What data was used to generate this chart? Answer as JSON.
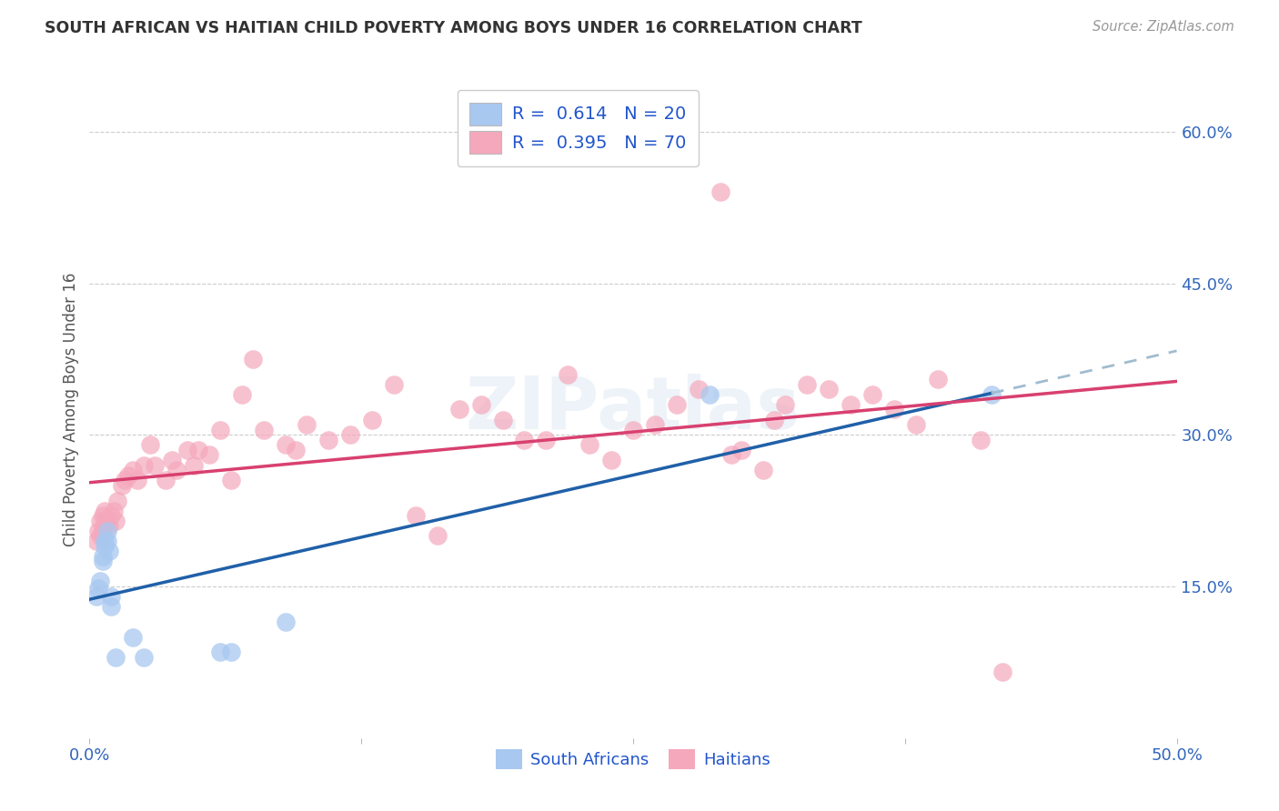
{
  "title": "SOUTH AFRICAN VS HAITIAN CHILD POVERTY AMONG BOYS UNDER 16 CORRELATION CHART",
  "source": "Source: ZipAtlas.com",
  "ylabel": "Child Poverty Among Boys Under 16",
  "xlim": [
    0.0,
    0.5
  ],
  "ylim": [
    0.0,
    0.65
  ],
  "xtick_vals": [
    0.0,
    0.125,
    0.25,
    0.375,
    0.5
  ],
  "xtick_labels": [
    "0.0%",
    "",
    "",
    "",
    "50.0%"
  ],
  "ytick_labels_right": [
    "60.0%",
    "45.0%",
    "30.0%",
    "15.0%"
  ],
  "ytick_vals_right": [
    0.6,
    0.45,
    0.3,
    0.15
  ],
  "blue_R": 0.614,
  "blue_N": 20,
  "pink_R": 0.395,
  "pink_N": 70,
  "blue_color": "#A8C8F0",
  "pink_color": "#F5A8BC",
  "blue_line_color": "#2060A8",
  "pink_line_color": "#D84070",
  "blue_dash_color": "#A0BCD0",
  "background_color": "#FFFFFF",
  "grid_color": "#CCCCCC",
  "title_color": "#333333",
  "axis_label_color": "#555555",
  "right_tick_color": "#3366BB",
  "bottom_tick_color": "#3366BB",
  "legend_text_color": "#2255CC",
  "watermark": "ZIPatlas",
  "blue_points_x": [
    0.003,
    0.004,
    0.005,
    0.006,
    0.006,
    0.007,
    0.007,
    0.008,
    0.008,
    0.009,
    0.01,
    0.01,
    0.012,
    0.02,
    0.025,
    0.06,
    0.065,
    0.09,
    0.285,
    0.415
  ],
  "blue_points_y": [
    0.14,
    0.148,
    0.155,
    0.175,
    0.18,
    0.19,
    0.195,
    0.195,
    0.205,
    0.185,
    0.13,
    0.14,
    0.08,
    0.1,
    0.08,
    0.085,
    0.085,
    0.115,
    0.34,
    0.34
  ],
  "pink_points_x": [
    0.003,
    0.004,
    0.005,
    0.005,
    0.006,
    0.006,
    0.007,
    0.007,
    0.008,
    0.009,
    0.01,
    0.011,
    0.012,
    0.013,
    0.015,
    0.016,
    0.018,
    0.02,
    0.022,
    0.025,
    0.028,
    0.03,
    0.035,
    0.038,
    0.04,
    0.045,
    0.048,
    0.05,
    0.055,
    0.06,
    0.065,
    0.07,
    0.075,
    0.08,
    0.09,
    0.095,
    0.1,
    0.11,
    0.12,
    0.13,
    0.14,
    0.15,
    0.16,
    0.17,
    0.18,
    0.19,
    0.2,
    0.21,
    0.22,
    0.23,
    0.24,
    0.25,
    0.26,
    0.27,
    0.28,
    0.29,
    0.295,
    0.3,
    0.31,
    0.315,
    0.32,
    0.33,
    0.34,
    0.35,
    0.36,
    0.37,
    0.38,
    0.39,
    0.41,
    0.42
  ],
  "pink_points_y": [
    0.195,
    0.205,
    0.2,
    0.215,
    0.205,
    0.22,
    0.215,
    0.225,
    0.215,
    0.21,
    0.22,
    0.225,
    0.215,
    0.235,
    0.25,
    0.255,
    0.26,
    0.265,
    0.255,
    0.27,
    0.29,
    0.27,
    0.255,
    0.275,
    0.265,
    0.285,
    0.27,
    0.285,
    0.28,
    0.305,
    0.255,
    0.34,
    0.375,
    0.305,
    0.29,
    0.285,
    0.31,
    0.295,
    0.3,
    0.315,
    0.35,
    0.22,
    0.2,
    0.325,
    0.33,
    0.315,
    0.295,
    0.295,
    0.36,
    0.29,
    0.275,
    0.305,
    0.31,
    0.33,
    0.345,
    0.54,
    0.28,
    0.285,
    0.265,
    0.315,
    0.33,
    0.35,
    0.345,
    0.33,
    0.34,
    0.325,
    0.31,
    0.355,
    0.295,
    0.065
  ]
}
